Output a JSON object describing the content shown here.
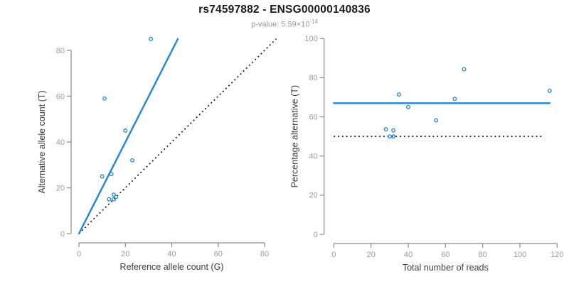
{
  "header": {
    "title": "rs74597882 - ENSG00000140836",
    "subtitle_main": "p-value: 5.59×10",
    "subtitle_exponent": "-14",
    "p_value": "5.59e-14"
  },
  "colors": {
    "accent_blue": "#1F86D9",
    "dotted_black": "#111111",
    "axis_line_gray": "#8a8a8a",
    "tick_label_gray": "#9b9b9b",
    "axis_title_gray": "#3d3d3d"
  },
  "chart_data": [
    {
      "type": "scatter",
      "name": "allele-counts-scatter",
      "xlabel": "Reference allele count (G)",
      "ylabel": "Alternative allele count (T)",
      "xlim": [
        0,
        80
      ],
      "ylim": [
        0,
        80
      ],
      "xticks": [
        0,
        20,
        40,
        60,
        80
      ],
      "yticks": [
        0,
        20,
        40,
        60,
        80
      ],
      "grid": false,
      "legend": "none",
      "marker": "open-circle",
      "points": [
        [
          31,
          85
        ],
        [
          11,
          59
        ],
        [
          20,
          45
        ],
        [
          23,
          32
        ],
        [
          14,
          26
        ],
        [
          10,
          25
        ],
        [
          15,
          17
        ],
        [
          16,
          16
        ],
        [
          13,
          15
        ],
        [
          15,
          15
        ]
      ],
      "fit_line": {
        "style": "solid",
        "color": "accent_blue",
        "x1": 0,
        "y1": 0,
        "x2": 42.6,
        "y2": 85
      },
      "reference_line": {
        "style": "dotted",
        "color": "dotted_black",
        "x1": 0,
        "y1": 0,
        "x2": 85,
        "y2": 85
      }
    },
    {
      "type": "scatter",
      "name": "percentage-vs-reads-scatter",
      "xlabel": "Total number of reads",
      "ylabel": "Percentage alternative (T)",
      "xlim": [
        0,
        120
      ],
      "ylim": [
        0,
        100
      ],
      "xticks": [
        0,
        20,
        40,
        60,
        80,
        100,
        120
      ],
      "yticks": [
        0,
        20,
        40,
        60,
        80,
        100
      ],
      "grid": false,
      "legend": "none",
      "marker": "open-circle",
      "points": [
        [
          28,
          53.6
        ],
        [
          30,
          50
        ],
        [
          32,
          53.1
        ],
        [
          32,
          50
        ],
        [
          35,
          71.4
        ],
        [
          40,
          65
        ],
        [
          55,
          58.2
        ],
        [
          65,
          69.2
        ],
        [
          70,
          84.3
        ],
        [
          116,
          73.3
        ]
      ],
      "fit_line": {
        "style": "solid",
        "color": "accent_blue",
        "x1": 0,
        "y1": 67,
        "x2": 116,
        "y2": 67
      },
      "reference_line": {
        "style": "dotted",
        "color": "dotted_black",
        "x1": 0,
        "y1": 50,
        "x2": 113,
        "y2": 50
      }
    }
  ]
}
